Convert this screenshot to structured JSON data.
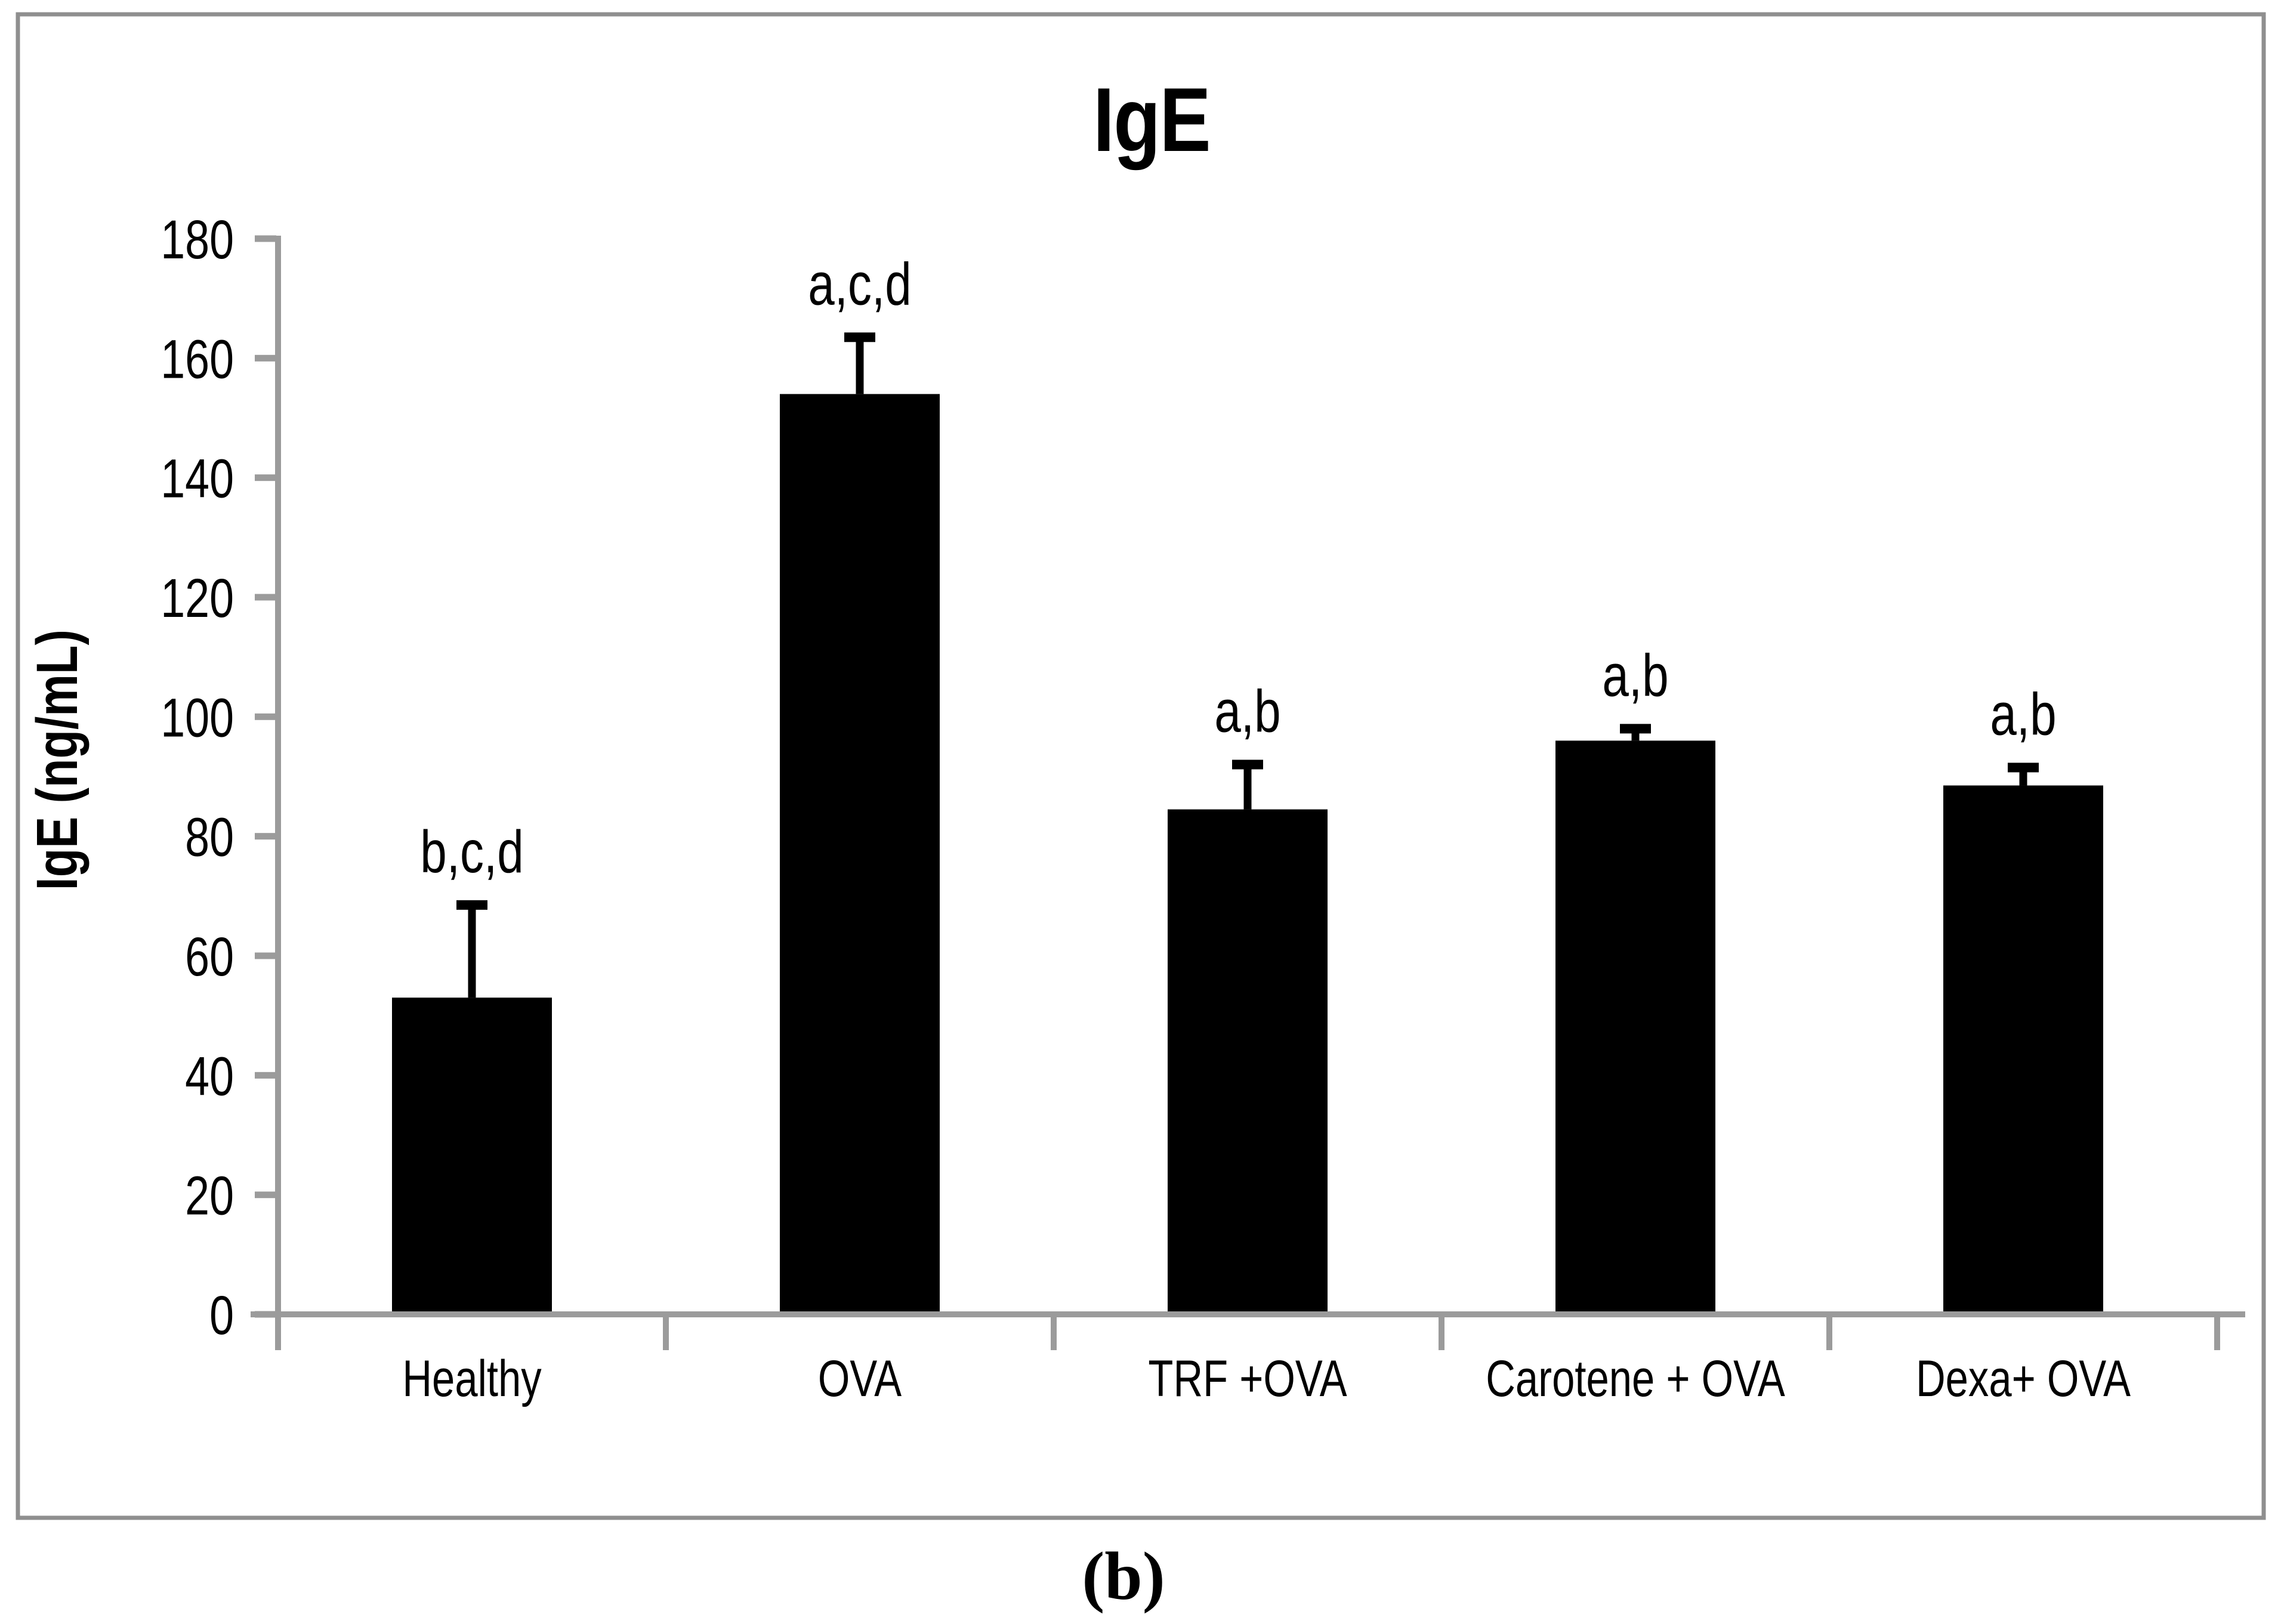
{
  "figure": {
    "caption": "(b)"
  },
  "chart_data": {
    "type": "bar",
    "title": "IgE",
    "xlabel": "",
    "ylabel": "IgE (ng/mL)",
    "categories": [
      "Healthy",
      "OVA",
      "TRF +OVA",
      "Carotene + OVA",
      "Dexa+ OVA"
    ],
    "values": [
      53,
      154,
      84.5,
      96,
      88.5
    ],
    "error_plus": [
      15.5,
      9.5,
      7.5,
      2,
      3
    ],
    "annotations": [
      "b,c,d",
      "a,c,d",
      "a,b",
      "a,b",
      "a,b"
    ],
    "ylim": [
      0,
      180
    ],
    "ytick_step": 20,
    "ytick_labels": [
      "0",
      "20",
      "40",
      "60",
      "80",
      "100",
      "120",
      "140",
      "160",
      "180"
    ],
    "grid": false,
    "legend_position": "none",
    "bar_color": "#000000",
    "error_bar_color": "#000000",
    "axis_color": "#9b9b9b",
    "frame_color": "#8f8f8f",
    "text_color": "#000000"
  }
}
